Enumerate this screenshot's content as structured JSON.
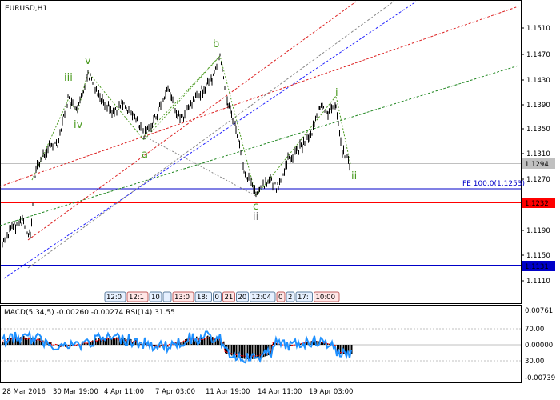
{
  "symbol": "EURUSD,H1",
  "colors": {
    "wave_green": "#4a9a1f",
    "wave_gray": "#7a7a7a",
    "red_line": "#ff0000",
    "blue_line": "#0000c8",
    "price_box": "#c0c0c0",
    "macd_hist": "#000000",
    "rsi": "#1e90ff",
    "signal": "#ff0000"
  },
  "price_axis": {
    "ticks": [
      "1.1510",
      "1.1470",
      "1.1430",
      "1.1390",
      "1.1350",
      "1.1310",
      "1.1270",
      "1.1190",
      "1.1150",
      "1.1110"
    ],
    "current": "1.1294",
    "red_level": "1.1232",
    "blue_level": "1.1131"
  },
  "fe_label": "FE 100.0(1.1253)",
  "waves": {
    "iii": "iii",
    "v": "v",
    "iv": "iv",
    "a": "a",
    "b": "b",
    "c": "c",
    "ii_low": "ii",
    "i": "i",
    "ii_right": "ii"
  },
  "time_boxes": [
    "12:0",
    "12:1",
    "10",
    "",
    "13:0",
    "18:",
    "0",
    "21",
    "20",
    "12:04",
    "0",
    "2",
    "17:",
    "10:00"
  ],
  "indicator": {
    "title": "MACD(5,34,5) -0.00260 -0.00274 RSI(14) 31.55",
    "ticks": [
      "0.00761",
      "70.00",
      "0.00000",
      "30.00",
      "-0.00739"
    ]
  },
  "time_axis": [
    "28 Mar 2016",
    "30 Mar 19:00",
    "4 Apr 11:00",
    "7 Apr 03:00",
    "11 Apr 19:00",
    "14 Apr 11:00",
    "19 Apr 03:00"
  ]
}
